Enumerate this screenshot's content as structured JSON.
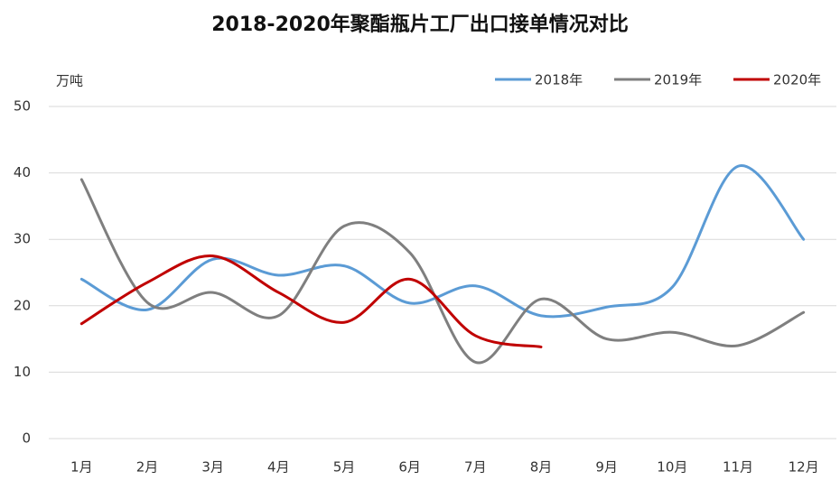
{
  "chart_data": {
    "type": "line",
    "title": "2018-2020年聚酯瓶片工厂出口接单情况对比",
    "y_label": "万吨",
    "categories": [
      "1月",
      "2月",
      "3月",
      "4月",
      "5月",
      "6月",
      "7月",
      "8月",
      "9月",
      "10月",
      "11月",
      "12月"
    ],
    "series": [
      {
        "name": "2018年",
        "color": "#5b9bd5",
        "values": [
          24,
          19.4,
          27,
          24.6,
          26,
          20.4,
          23,
          18.5,
          19.8,
          22.8,
          41,
          30
        ]
      },
      {
        "name": "2019年",
        "color": "#7f7f7f",
        "values": [
          39,
          20.5,
          22,
          18.5,
          32,
          28,
          11.5,
          21,
          15,
          16,
          14,
          19
        ]
      },
      {
        "name": "2020年",
        "color": "#c00000",
        "values": [
          17.3,
          23.5,
          27.5,
          22,
          17.5,
          24,
          15.5,
          13.8,
          null,
          null,
          null,
          null
        ]
      }
    ],
    "ylim": [
      0,
      50
    ],
    "yticks": [
      0,
      10,
      20,
      30,
      40,
      50
    ],
    "grid": true,
    "smooth": true,
    "legend": "top-right"
  }
}
